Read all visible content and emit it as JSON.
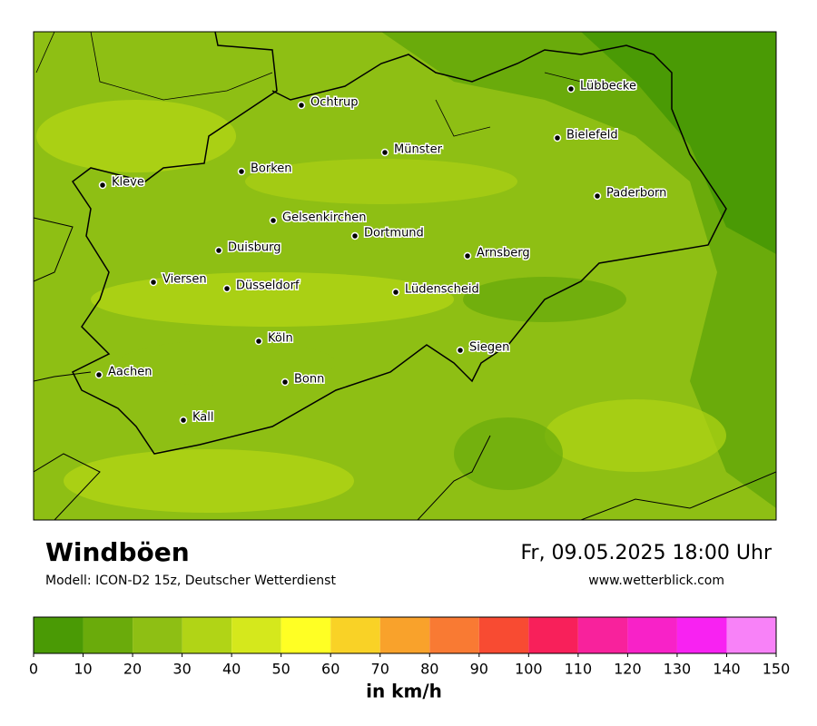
{
  "map": {
    "cities": [
      "Lübbecke",
      "Ochtrup",
      "Bielefeld",
      "Münster",
      "Borken",
      "Kleve",
      "Paderborn",
      "Gelsenkirchen",
      "Dortmund",
      "Duisburg",
      "Arnsberg",
      "Viersen",
      "Düsseldorf",
      "Lüdenscheid",
      "Köln",
      "Siegen",
      "Aachen",
      "Bonn",
      "Kall"
    ]
  },
  "header": {
    "title": "Windböen",
    "model": "Modell: ICON-D2 15z, Deutscher Wetterdienst",
    "datetime": "Fr, 09.05.2025 18:00 Uhr",
    "website": "www.wetterblick.com"
  },
  "legend": {
    "ticks": [
      0,
      10,
      20,
      30,
      40,
      50,
      60,
      70,
      80,
      90,
      100,
      110,
      120,
      130,
      140,
      150
    ],
    "colors": [
      "#4a9a05",
      "#6aab0b",
      "#8ebf14",
      "#b1d416",
      "#d5e81c",
      "#ffff24",
      "#f9d226",
      "#f9a22b",
      "#f97a33",
      "#f84b32",
      "#f8205a",
      "#f8229c",
      "#f822c8",
      "#f822f2",
      "#f882f8"
    ],
    "unit": "in km/h"
  }
}
